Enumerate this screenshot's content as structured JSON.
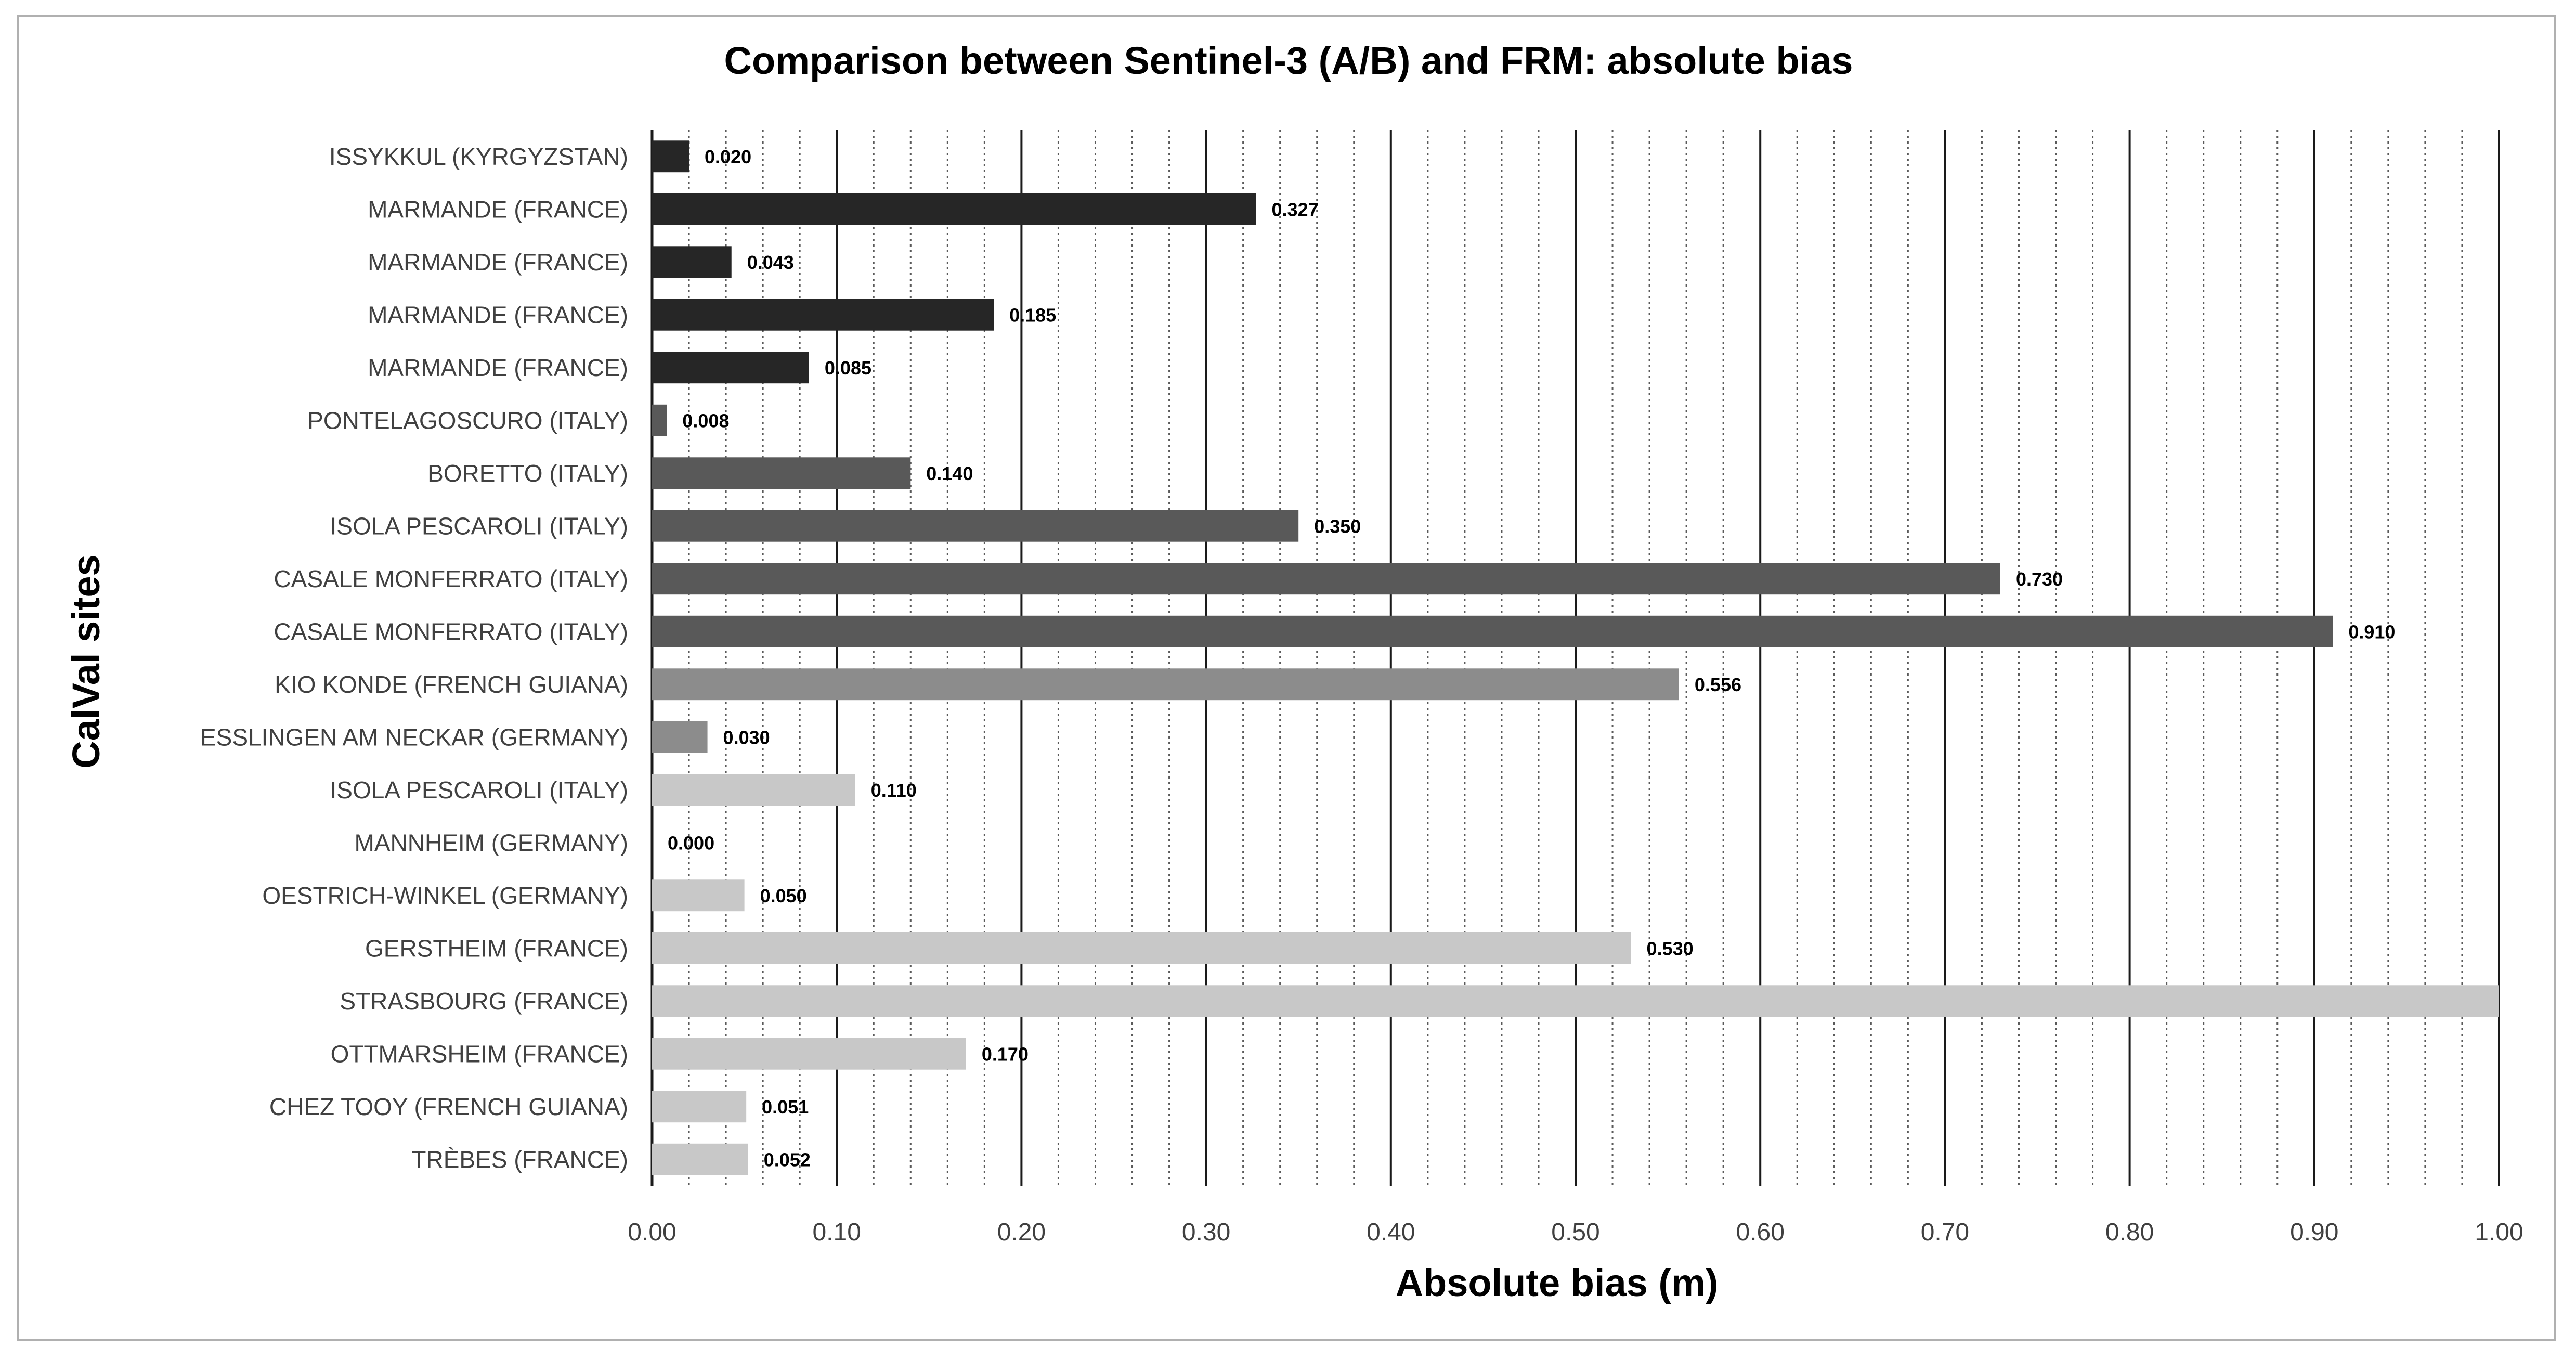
{
  "chart_data": {
    "type": "bar",
    "orientation": "horizontal",
    "title": "Comparison between Sentinel-3 (A/B) and FRM: absolute bias",
    "xlabel": "Absolute bias (m)",
    "ylabel": "CalVal sites",
    "xlim": [
      0,
      1
    ],
    "major_tick_step": 0.1,
    "minor_tick_step": 0.02,
    "grid": true,
    "legend": "none",
    "tick_labels": [
      "0.00",
      "0.10",
      "0.20",
      "0.30",
      "0.40",
      "0.50",
      "0.60",
      "0.70",
      "0.80",
      "0.90",
      "1.00"
    ],
    "categories": [
      "ISSYKKUL (KYRGYZSTAN)",
      "MARMANDE (FRANCE)",
      "MARMANDE (FRANCE)",
      "MARMANDE (FRANCE)",
      "MARMANDE (FRANCE)",
      "PONTELAGOSCURO (ITALY)",
      "BORETTO (ITALY)",
      "ISOLA PESCAROLI (ITALY)",
      "CASALE MONFERRATO (ITALY)",
      "CASALE MONFERRATO (ITALY)",
      "KIO KONDE (FRENCH GUIANA)",
      "ESSLINGEN AM NECKAR (GERMANY)",
      "ISOLA PESCAROLI (ITALY)",
      "MANNHEIM (GERMANY)",
      "OESTRICH-WINKEL (GERMANY)",
      "GERSTHEIM (FRANCE)",
      "STRASBOURG (FRANCE)",
      "OTTMARSHEIM (FRANCE)",
      "CHEZ TOOY (FRENCH GUIANA)",
      "TRÈBES (FRANCE)"
    ],
    "values": [
      0.02,
      0.327,
      0.043,
      0.185,
      0.085,
      0.008,
      0.14,
      0.35,
      0.73,
      0.91,
      0.556,
      0.03,
      0.11,
      0.0,
      0.05,
      0.53,
      1.0,
      0.17,
      0.051,
      0.052
    ],
    "data_labels": [
      "0.020",
      "0.327",
      "0.043",
      "0.185",
      "0.085",
      "0.008",
      "0.140",
      "0.350",
      "0.730",
      "0.910",
      "0.556",
      "0.030",
      "0.110",
      "0.000",
      "0.050",
      "0.530",
      "",
      "0.170",
      "0.051",
      "0.052"
    ],
    "bar_colors": [
      "#262626",
      "#262626",
      "#262626",
      "#262626",
      "#262626",
      "#595959",
      "#595959",
      "#595959",
      "#595959",
      "#595959",
      "#8c8c8c",
      "#8c8c8c",
      "#c8c8c8",
      "#c8c8c8",
      "#c8c8c8",
      "#c8c8c8",
      "#c8c8c8",
      "#c8c8c8",
      "#c8c8c8",
      "#c8c8c8"
    ]
  }
}
